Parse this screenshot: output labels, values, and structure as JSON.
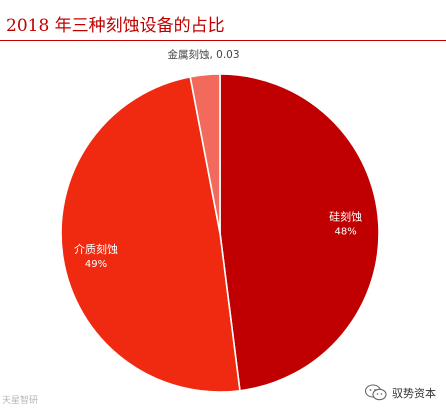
{
  "title": "2018 年三种刻蚀设备的占比",
  "colors": {
    "title": "#c00000",
    "slice_silicon": "#c00000",
    "slice_dielectric": "#f02a10",
    "slice_metal": "#f26a5c",
    "label_on_slice": "#ffffff",
    "label_outside": "#444444"
  },
  "chart_data": {
    "type": "pie",
    "title": "2018 年三种刻蚀设备的占比",
    "start": "12 o'clock, clockwise",
    "legend": "none",
    "slices": [
      {
        "label": "硅刻蚀",
        "value": 0.48,
        "value_text": "48%",
        "color": "#c00000",
        "label_placement": "inside"
      },
      {
        "label": "介质刻蚀",
        "value": 0.49,
        "value_text": "49%",
        "color": "#f02a10",
        "label_placement": "inside"
      },
      {
        "label": "金属刻蚀",
        "value": 0.03,
        "value_text": "0.03",
        "color": "#f26a5c",
        "label_placement": "outside-top"
      }
    ]
  },
  "watermark": {
    "left_text": "天星智研",
    "wechat_label": "驭势资本",
    "wechat_icon": "wechat-icon"
  }
}
